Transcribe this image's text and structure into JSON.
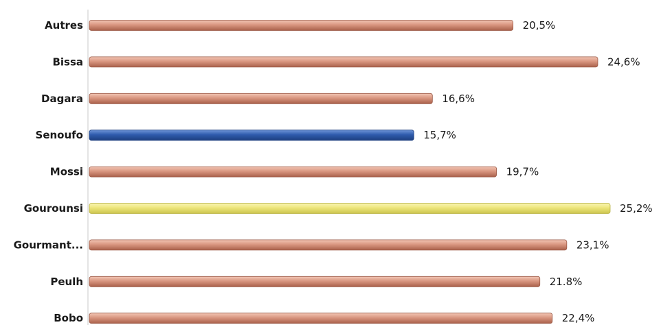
{
  "chart_data": {
    "type": "bar",
    "orientation": "horizontal",
    "categories": [
      "Autres",
      "Bissa",
      "Dagara",
      "Senoufo",
      "Mossi",
      "Gourounsi",
      "Gourmant...",
      "Peulh",
      "Bobo"
    ],
    "values": [
      20.5,
      24.6,
      16.6,
      15.7,
      19.7,
      25.2,
      23.1,
      21.8,
      22.4
    ],
    "value_labels": [
      "20,5%",
      "24,6%",
      "16,6%",
      "15,7%",
      "19,7%",
      "25,2%",
      "23,1%",
      "21.8%",
      "22,4%"
    ],
    "xlim": [
      0,
      25.2
    ],
    "grid": false,
    "legend": "none",
    "colors": {
      "default": "#cf8a74",
      "highlight_blue": "#2f5cad",
      "highlight_yellow": "#ece57a"
    },
    "bar_colors": [
      "default",
      "default",
      "default",
      "highlight_blue",
      "default",
      "highlight_yellow",
      "default",
      "default",
      "default"
    ]
  }
}
